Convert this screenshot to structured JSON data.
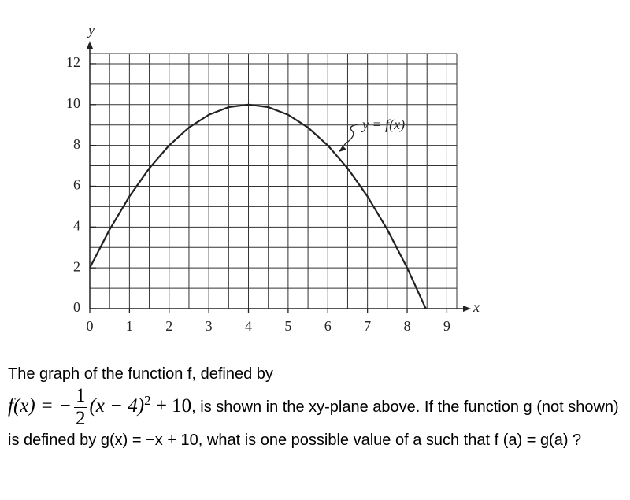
{
  "chart_data": {
    "type": "line",
    "xlabel": "x",
    "ylabel": "y",
    "annotation": "y = f(x)",
    "x": [
      0,
      0.5,
      1,
      1.5,
      2,
      2.5,
      3,
      3.5,
      4,
      4.5,
      5,
      5.5,
      6,
      6.5,
      7,
      7.5,
      8,
      8.47
    ],
    "series": [
      {
        "color": "#222222",
        "values": [
          2,
          3.875,
          5.5,
          6.875,
          8,
          8.875,
          9.5,
          9.875,
          10,
          9.875,
          9.5,
          8.875,
          8,
          6.875,
          5.5,
          3.875,
          2,
          0
        ]
      }
    ],
    "xlim": [
      0,
      9.25
    ],
    "ylim": [
      0,
      12.5
    ],
    "xticks": [
      0,
      1,
      2,
      3,
      4,
      5,
      6,
      7,
      8,
      9
    ],
    "yticks": [
      0,
      2,
      4,
      6,
      8,
      10,
      12
    ],
    "grid": true
  },
  "question": {
    "text_before": "The graph of the function f, defined by",
    "formula": {
      "lhs": "f(x) = −",
      "numerator": "1",
      "denominator": "2",
      "base": "(x − 4)",
      "exponent": "2",
      "tail": "+ 10"
    },
    "text_after": ", is shown in the xy-plane above. If the function g (not shown) is defined by g(x) = −x + 10, what is one possible value of a such that f (a) = g(a) ?"
  }
}
